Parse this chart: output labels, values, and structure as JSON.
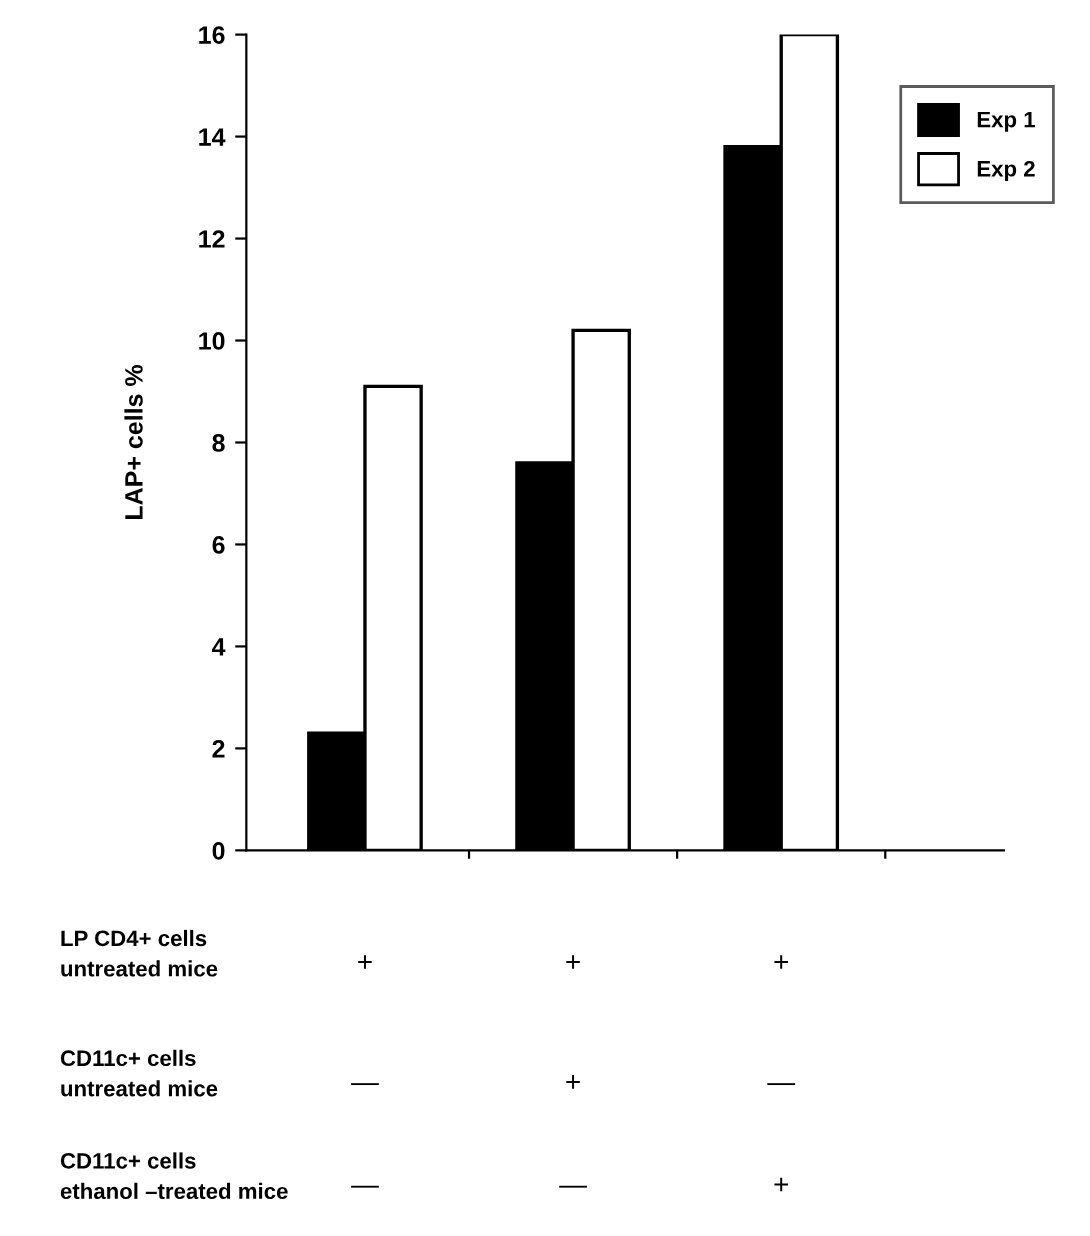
{
  "chart_data": {
    "type": "bar",
    "ylabel": "LAP+ cells %",
    "categories": [
      "+\n—\n—",
      "+\n+\n—",
      "+\n—\n+"
    ],
    "series": [
      {
        "name": "Exp 1",
        "color": "#000000",
        "values": [
          2.3,
          7.6,
          13.8
        ]
      },
      {
        "name": "Exp 2",
        "color": "#ffffff",
        "values": [
          9.1,
          10.2,
          16.0
        ]
      }
    ],
    "ylim": [
      0,
      16
    ],
    "yticks": [
      0,
      2,
      4,
      6,
      8,
      10,
      12,
      14,
      16
    ],
    "grid": false,
    "legend": "top right",
    "annotations": [
      "LP CD4+ cells\nuntreated mice",
      "CD11c+ cells\nuntreated mice",
      "CD11c+ cells\nethanol –treated mice"
    ]
  }
}
